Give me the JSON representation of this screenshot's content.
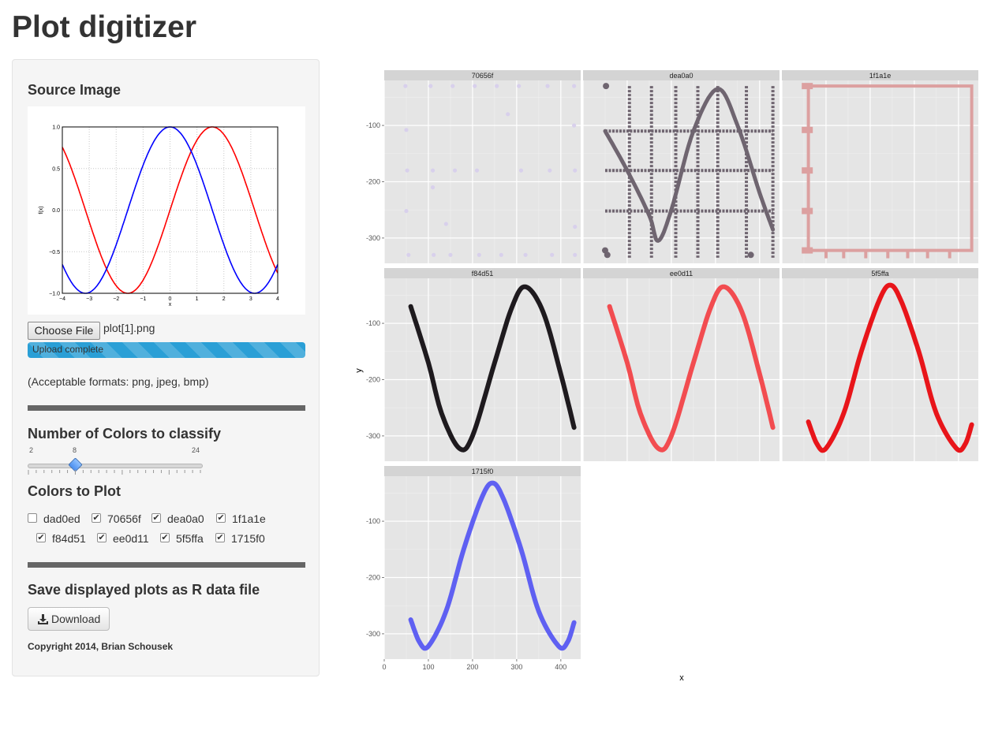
{
  "app": {
    "title": "Plot digitizer"
  },
  "sidebar": {
    "source_title": "Source Image",
    "file_button": "Choose File",
    "file_name": "plot[1].png",
    "upload_status": "Upload complete",
    "upload_progress_percent": 100,
    "formats_note": "(Acceptable formats: png, jpeg, bmp)",
    "colors_count_title": "Number of Colors to classify",
    "slider": {
      "min_label": "2",
      "value_label": "8",
      "max_label": "24",
      "min": 2,
      "max": 24,
      "value": 8
    },
    "colors_plot_title": "Colors to Plot",
    "colors": [
      {
        "label": "dad0ed",
        "checked": false
      },
      {
        "label": "70656f",
        "checked": true
      },
      {
        "label": "dea0a0",
        "checked": true
      },
      {
        "label": "1f1a1e",
        "checked": true
      },
      {
        "label": "f84d51",
        "checked": true
      },
      {
        "label": "ee0d11",
        "checked": true
      },
      {
        "label": "5f5ffa",
        "checked": true
      },
      {
        "label": "1715f0",
        "checked": true
      }
    ],
    "save_title": "Save displayed plots as R data file",
    "download_button": "Download",
    "copyright": "Copyright 2014, Brian Schousek"
  },
  "chart_data": [
    {
      "type": "line",
      "title": "",
      "xlabel": "x",
      "ylabel": "f(x)",
      "xlim": [
        -4,
        4
      ],
      "ylim": [
        -1.0,
        1.0
      ],
      "x_ticks": [
        "−4",
        "−3",
        "−2",
        "−1",
        "0",
        "1",
        "2",
        "3",
        "4"
      ],
      "y_ticks": [
        "1.0",
        "0.5",
        "0.0",
        "−0.5",
        "−1.0"
      ],
      "grid": true,
      "series": [
        {
          "color": "#ff0000",
          "points": [
            [
              -4,
              0.76
            ],
            [
              -3,
              -0.14
            ],
            [
              -2,
              -0.91
            ],
            [
              -1.57,
              -1.0
            ],
            [
              -1,
              -0.84
            ],
            [
              0,
              0.0
            ],
            [
              1,
              0.84
            ],
            [
              1.57,
              1.0
            ],
            [
              2,
              0.91
            ],
            [
              3,
              0.14
            ],
            [
              4,
              -0.76
            ]
          ]
        },
        {
          "color": "#0000ff",
          "points": [
            [
              -4,
              -0.65
            ],
            [
              -3.14,
              -1.0
            ],
            [
              -3,
              -0.99
            ],
            [
              -2,
              -0.42
            ],
            [
              -1,
              0.54
            ],
            [
              0,
              1.0
            ],
            [
              1,
              0.54
            ],
            [
              2,
              -0.42
            ],
            [
              3,
              -0.99
            ],
            [
              3.14,
              -1.0
            ],
            [
              4,
              -0.65
            ]
          ]
        }
      ]
    },
    {
      "type": "scatter",
      "xlabel": "x",
      "ylabel": "y",
      "xlim": [
        0,
        445
      ],
      "ylim": [
        -345,
        -20
      ],
      "x_ticks": [
        0,
        100,
        200,
        300,
        400
      ],
      "y_ticks": [
        -100,
        -200,
        -300
      ],
      "grid": true,
      "panels": [
        {
          "name": "70656f",
          "color": "#d8d0ec",
          "kind": "scatter",
          "points": [
            [
              48,
              -30
            ],
            [
              50,
              -108
            ],
            [
              52,
              -180
            ],
            [
              50,
              -252
            ],
            [
              55,
              -330
            ],
            [
              105,
              -30
            ],
            [
              110,
              -180
            ],
            [
              112,
              -330
            ],
            [
              155,
              -30
            ],
            [
              160,
              -180
            ],
            [
              150,
              -330
            ],
            [
              205,
              -30
            ],
            [
              210,
              -180
            ],
            [
              215,
              -330
            ],
            [
              255,
              -30
            ],
            [
              280,
              -80
            ],
            [
              265,
              -330
            ],
            [
              305,
              -30
            ],
            [
              310,
              -180
            ],
            [
              320,
              -330
            ],
            [
              370,
              -30
            ],
            [
              375,
              -180
            ],
            [
              380,
              -330
            ],
            [
              430,
              -30
            ],
            [
              430,
              -100
            ],
            [
              432,
              -180
            ],
            [
              432,
              -280
            ],
            [
              432,
              -330
            ],
            [
              110,
              -210
            ],
            [
              140,
              -275
            ]
          ]
        },
        {
          "name": "dea0a0",
          "color": "#6f6570",
          "kind": "grid-sine",
          "points": [
            [
              50,
              -110
            ],
            [
              100,
              -180
            ],
            [
              150,
              -260
            ],
            [
              170,
              -305
            ],
            [
              200,
              -250
            ],
            [
              250,
              -110
            ],
            [
              305,
              -35
            ],
            [
              350,
              -100
            ],
            [
              400,
              -220
            ],
            [
              430,
              -285
            ]
          ]
        },
        {
          "name": "1f1a1e",
          "color": "#dca0a0",
          "kind": "frame",
          "points": [
            [
              60,
              -30
            ],
            [
              430,
              -30
            ],
            [
              430,
              -322
            ],
            [
              60,
              -322
            ]
          ]
        },
        {
          "name": "f84d51",
          "color": "#1e1a1e",
          "kind": "curve",
          "points": [
            [
              60,
              -70
            ],
            [
              100,
              -170
            ],
            [
              130,
              -260
            ],
            [
              170,
              -322
            ],
            [
              200,
              -300
            ],
            [
              250,
              -170
            ],
            [
              290,
              -70
            ],
            [
              320,
              -35
            ],
            [
              360,
              -80
            ],
            [
              400,
              -190
            ],
            [
              430,
              -285
            ]
          ]
        },
        {
          "name": "ee0d11",
          "color": "#f24c50",
          "kind": "curve",
          "points": [
            [
              60,
              -70
            ],
            [
              100,
              -170
            ],
            [
              130,
              -260
            ],
            [
              170,
              -322
            ],
            [
              200,
              -300
            ],
            [
              250,
              -170
            ],
            [
              290,
              -70
            ],
            [
              320,
              -35
            ],
            [
              360,
              -80
            ],
            [
              400,
              -190
            ],
            [
              430,
              -285
            ]
          ]
        },
        {
          "name": "5f5ffa",
          "color": "#e8151a",
          "kind": "curve",
          "points": [
            [
              60,
              -275
            ],
            [
              80,
              -315
            ],
            [
              100,
              -322
            ],
            [
              140,
              -260
            ],
            [
              180,
              -150
            ],
            [
              220,
              -60
            ],
            [
              245,
              -32
            ],
            [
              270,
              -60
            ],
            [
              310,
              -150
            ],
            [
              350,
              -260
            ],
            [
              395,
              -322
            ],
            [
              415,
              -315
            ],
            [
              430,
              -280
            ]
          ]
        },
        {
          "name": "1715f0",
          "color": "#5f60f2",
          "kind": "curve",
          "points": [
            [
              60,
              -275
            ],
            [
              80,
              -315
            ],
            [
              100,
              -322
            ],
            [
              140,
              -260
            ],
            [
              180,
              -150
            ],
            [
              220,
              -60
            ],
            [
              245,
              -32
            ],
            [
              270,
              -60
            ],
            [
              310,
              -150
            ],
            [
              350,
              -260
            ],
            [
              395,
              -322
            ],
            [
              415,
              -315
            ],
            [
              430,
              -280
            ]
          ]
        }
      ]
    }
  ]
}
